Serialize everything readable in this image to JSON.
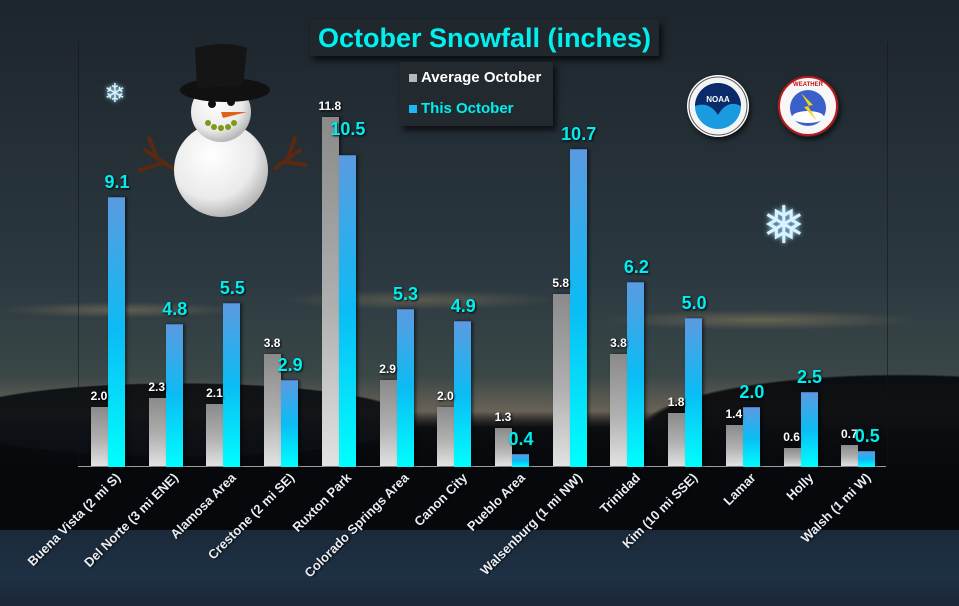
{
  "title": "October Snowfall (inches)",
  "legend": [
    {
      "label": "Average October",
      "color": "#b8b8b8",
      "text_color": "#ffffff"
    },
    {
      "label": "This October",
      "color": "#1bb6f4",
      "text_color": "#00eef0"
    }
  ],
  "logos": {
    "left": "NOAA",
    "right": "NATIONAL WEATHER SERVICE"
  },
  "decorations": [
    "snowman",
    "snowflake-small",
    "snowflake-large"
  ],
  "chart_data": {
    "type": "bar",
    "title": "October Snowfall (inches)",
    "xlabel": "",
    "ylabel": "",
    "ylim": [
      0,
      12.5
    ],
    "grid": false,
    "legend_position": "top-center",
    "categories": [
      "Buena Vista (2 mi S)",
      "Del Norte (3 mi ENE)",
      "Alamosa Area",
      "Crestone (2 mi SE)",
      "Ruxton Park",
      "Colorado Springs Area",
      "Canon City",
      "Pueblo Area",
      "Walsenburg (1 mi NW)",
      "Trinidad",
      "Kim (10 mi SSE)",
      "Lamar",
      "Holly",
      "Walsh (1 mi W)"
    ],
    "series": [
      {
        "name": "Average October",
        "values": [
          2.0,
          2.3,
          2.1,
          3.8,
          11.8,
          2.9,
          2.0,
          1.3,
          5.8,
          3.8,
          1.8,
          1.4,
          0.6,
          0.7
        ]
      },
      {
        "name": "This October",
        "values": [
          9.1,
          4.8,
          5.5,
          2.9,
          10.5,
          5.3,
          4.9,
          0.4,
          10.7,
          6.2,
          5.0,
          2.0,
          2.5,
          0.5
        ]
      }
    ],
    "value_labels": {
      "Average October": [
        "2.0",
        "2.3",
        "2.1",
        "3.8",
        "11.8",
        "2.9",
        "2.0",
        "1.3",
        "5.8",
        "3.8",
        "1.8",
        "1.4",
        "0.6",
        "0.7"
      ],
      "This October": [
        "9.1",
        "4.8",
        "5.5",
        "2.9",
        "10.5",
        "5.3",
        "4.9",
        "0.4",
        "10.7",
        "6.2",
        "5.0",
        "2.0",
        "2.5",
        "0.5"
      ]
    }
  }
}
